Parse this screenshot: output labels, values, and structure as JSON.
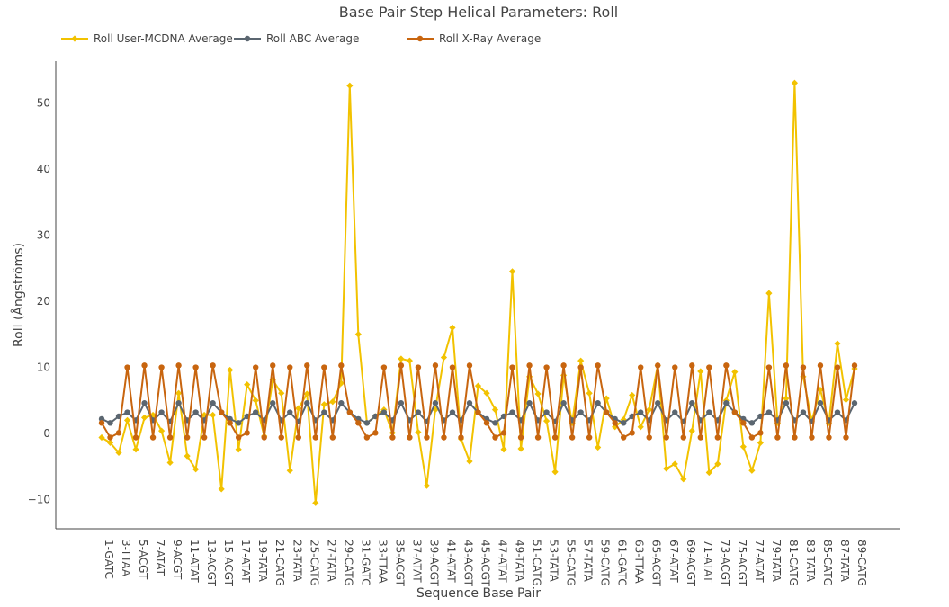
{
  "chart_data": {
    "type": "line",
    "title": "Base Pair Step Helical Parameters: Roll",
    "xlabel": "Sequence Base Pair",
    "ylabel": "Roll (Ångströms)",
    "ylim": [
      -14.4,
      56.3
    ],
    "yticks": [
      -10,
      0,
      10,
      20,
      30,
      40,
      50
    ],
    "grid": false,
    "legend_position": "top-left",
    "tick_labels": [
      "1-GATC",
      "3-TTAA",
      "5-ACGT",
      "7-ATAT",
      "9-ACGT",
      "11-ATAT",
      "13-ACGT",
      "15-ACGT",
      "17-ATAT",
      "19-TATA",
      "21-CATG",
      "23-TATA",
      "25-CATG",
      "27-TATA",
      "29-CATG",
      "31-GATC",
      "33-TTAA",
      "35-ACGT",
      "37-ATAT",
      "39-ACGT",
      "41-ATAT",
      "43-ACGT",
      "45-ACGT",
      "47-ATAT",
      "49-TATA",
      "51-CATG",
      "53-TATA",
      "55-CATG",
      "57-TATA",
      "59-CATG",
      "61-GATC",
      "63-TTAA",
      "65-ACGT",
      "67-ATAT",
      "69-ACGT",
      "71-ATAT",
      "73-ACGT",
      "75-ACGT",
      "77-ATAT",
      "79-TATA",
      "81-CATG",
      "83-TATA",
      "85-CATG",
      "87-TATA",
      "89-CATG"
    ],
    "x": [
      1,
      2,
      3,
      4,
      5,
      6,
      7,
      8,
      9,
      10,
      11,
      12,
      13,
      14,
      15,
      16,
      17,
      18,
      19,
      20,
      21,
      22,
      23,
      24,
      25,
      26,
      27,
      28,
      29,
      30,
      31,
      32,
      33,
      34,
      35,
      36,
      37,
      38,
      39,
      40,
      41,
      42,
      43,
      44,
      45,
      46,
      47,
      48,
      49,
      50,
      51,
      52,
      53,
      54,
      55,
      56,
      57,
      58,
      59,
      60,
      61,
      62,
      63,
      64,
      65,
      66,
      67,
      68,
      69,
      70,
      71,
      72,
      73,
      74,
      75,
      76,
      77,
      78,
      79,
      80,
      81,
      82,
      83,
      84,
      85,
      86,
      87,
      88,
      89
    ],
    "series": [
      {
        "name": "Roll User-MCDNA Average",
        "color": "#f2c200",
        "values": [
          -0.6,
          -1.4,
          -2.9,
          2.0,
          -2.4,
          2.4,
          2.8,
          0.4,
          -4.4,
          6.1,
          -3.4,
          -5.4,
          2.8,
          2.8,
          -8.4,
          9.6,
          -2.4,
          7.4,
          5.0,
          -0.4,
          8.1,
          6.1,
          -5.6,
          3.8,
          6.0,
          -10.5,
          4.4,
          4.8,
          7.6,
          52.6,
          15.0,
          1.6,
          2.6,
          3.6,
          0.1,
          11.3,
          11.0,
          0.2,
          -7.9,
          3.6,
          11.5,
          16.0,
          -0.8,
          -4.2,
          7.2,
          6.1,
          3.6,
          -2.4,
          24.5,
          -2.3,
          8.6,
          6.0,
          1.9,
          -5.8,
          8.8,
          1.6,
          11.0,
          6.1,
          -2.1,
          5.3,
          1.0,
          2.1,
          5.8,
          1.0,
          3.6,
          10.3,
          -5.3,
          -4.6,
          -6.9,
          0.4,
          9.4,
          -5.9,
          -4.6,
          5.0,
          9.3,
          -2.0,
          -5.6,
          -1.4,
          21.2,
          1.6,
          5.3,
          53.0,
          8.6,
          1.9,
          6.6,
          1.6,
          13.6,
          5.1,
          9.8
        ]
      },
      {
        "name": "Roll ABC Average",
        "color": "#5b6670",
        "values": [
          2.2,
          1.6,
          2.6,
          3.2,
          2.0,
          4.6,
          2.0,
          3.2,
          1.8,
          4.6,
          2.0,
          3.2,
          2.0,
          4.6,
          3.2,
          2.2,
          1.6,
          2.6,
          3.2,
          2.0,
          4.6,
          2.0,
          3.2,
          1.8,
          4.6,
          2.0,
          3.2,
          2.0,
          4.6,
          3.2,
          2.2,
          1.6,
          2.6,
          3.2,
          2.0,
          4.6,
          2.0,
          3.2,
          1.8,
          4.6,
          2.0,
          3.2,
          2.0,
          4.6,
          3.2,
          2.2,
          1.6,
          2.6,
          3.2,
          2.0,
          4.6,
          2.0,
          3.2,
          1.8,
          4.6,
          2.0,
          3.2,
          2.0,
          4.6,
          3.2,
          2.2,
          1.6,
          2.6,
          3.2,
          2.0,
          4.6,
          2.0,
          3.2,
          1.8,
          4.6,
          2.0,
          3.2,
          2.0,
          4.6,
          3.2,
          2.2,
          1.6,
          2.6,
          3.2,
          2.0,
          4.6,
          2.0,
          3.2,
          1.8,
          4.6,
          2.0,
          3.2,
          2.0,
          4.6
        ]
      },
      {
        "name": "Roll X-Ray Average",
        "color": "#c8650f",
        "values": [
          1.6,
          -0.6,
          0.1,
          10.0,
          -0.6,
          10.3,
          -0.6,
          10.0,
          -0.6,
          10.3,
          -0.6,
          10.0,
          -0.6,
          10.3,
          3.2,
          1.6,
          -0.6,
          0.1,
          10.0,
          -0.6,
          10.3,
          -0.6,
          10.0,
          -0.6,
          10.3,
          -0.6,
          10.0,
          -0.6,
          10.3,
          3.2,
          1.6,
          -0.6,
          0.1,
          10.0,
          -0.6,
          10.3,
          -0.6,
          10.0,
          -0.6,
          10.3,
          -0.6,
          10.0,
          -0.6,
          10.3,
          3.2,
          1.6,
          -0.6,
          0.1,
          10.0,
          -0.6,
          10.3,
          -0.6,
          10.0,
          -0.6,
          10.3,
          -0.6,
          10.0,
          -0.6,
          10.3,
          3.2,
          1.6,
          -0.6,
          0.1,
          10.0,
          -0.6,
          10.3,
          -0.6,
          10.0,
          -0.6,
          10.3,
          -0.6,
          10.0,
          -0.6,
          10.3,
          3.2,
          1.6,
          -0.6,
          0.1,
          10.0,
          -0.6,
          10.3,
          -0.6,
          10.0,
          -0.6,
          10.3,
          -0.6,
          10.0,
          -0.6,
          10.3
        ]
      }
    ]
  }
}
